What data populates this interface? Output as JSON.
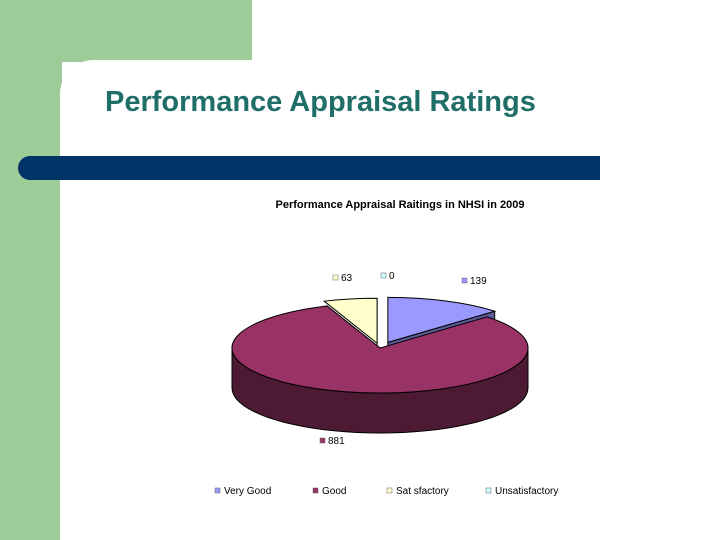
{
  "slide": {
    "title": "Performance Appraisal Ratings"
  },
  "chart_data": {
    "type": "pie",
    "title": "Performance Appraisal Raitings in NHSI in 2009",
    "categories": [
      "Very Good",
      "Good",
      "Sat sfactory",
      "Unsatisfactory"
    ],
    "values": [
      139,
      881,
      63,
      0
    ],
    "value_labels": [
      "139",
      "881",
      "63",
      "0"
    ],
    "colors": {
      "Very Good": "#9999ff",
      "Good": "#993366",
      "Sat sfactory": "#ffffcc",
      "Unsatisfactory": "#ccffff"
    },
    "three_d": true,
    "exploded": true,
    "legend_position": "bottom"
  }
}
